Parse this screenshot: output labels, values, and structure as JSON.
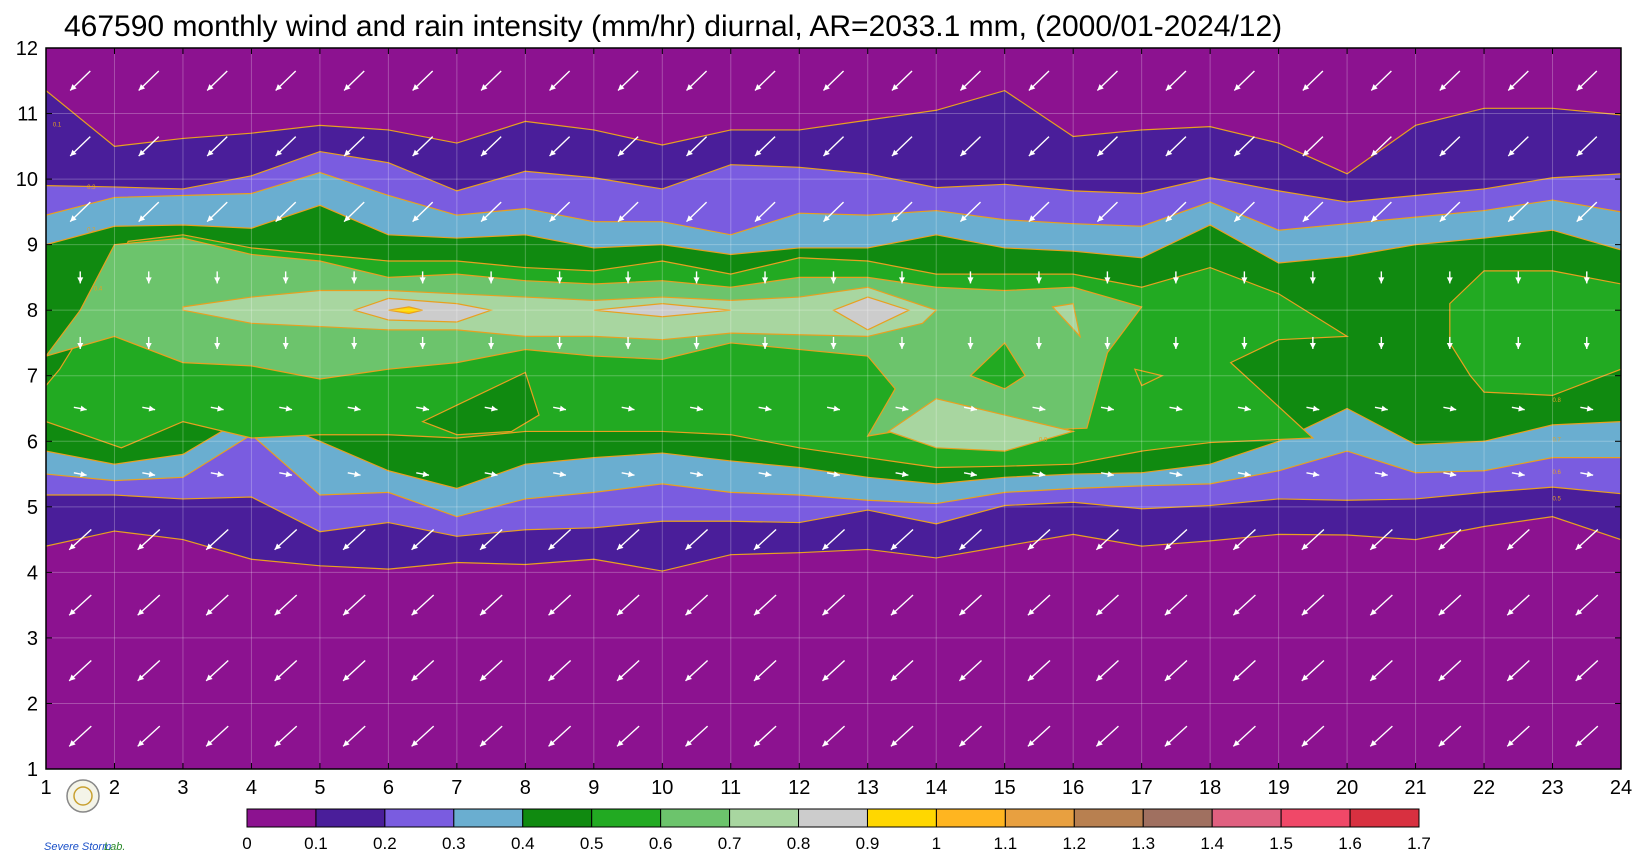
{
  "chart_data": {
    "type": "heatmap",
    "title": "467590 monthly wind and rain intensity (mm/hr) diurnal, AR=2033.1 mm, (2000/01-2024/12)",
    "x_ticks": [
      "1",
      "2",
      "3",
      "4",
      "5",
      "6",
      "7",
      "8",
      "9",
      "10",
      "11",
      "12",
      "13",
      "14",
      "15",
      "16",
      "17",
      "18",
      "19",
      "20",
      "21",
      "22",
      "23",
      "24"
    ],
    "y_ticks": [
      "1",
      "2",
      "3",
      "4",
      "5",
      "6",
      "7",
      "8",
      "9",
      "10",
      "11",
      "12"
    ],
    "xlim": [
      1,
      24
    ],
    "ylim": [
      1,
      12
    ],
    "grid": true,
    "colorbar": {
      "position": "bottom",
      "levels": [
        "0",
        "0.1",
        "0.2",
        "0.3",
        "0.4",
        "0.5",
        "0.6",
        "0.7",
        "0.8",
        "0.9",
        "1",
        "1.1",
        "1.2",
        "1.3",
        "1.4",
        "1.5",
        "1.6",
        "1.7"
      ],
      "colors": [
        "#8c1290",
        "#4a1e9a",
        "#7a5ce0",
        "#6aaed0",
        "#108a10",
        "#22aa22",
        "#6cc46c",
        "#a8d6a0",
        "#cccccc",
        "#ffd700",
        "#ffb520",
        "#e8a040",
        "#b88050",
        "#a07060",
        "#e06080",
        "#f04868",
        "#d83040"
      ]
    },
    "band_colors": [
      "#8c1290",
      "#4a1e9a",
      "#7a5ce0",
      "#6aaed0",
      "#108a10",
      "#22aa22",
      "#6cc46c",
      "#a8d6a0",
      "#cccccc",
      "#ffd700"
    ],
    "contour_line_color": "#e8a020",
    "wind_arrow_color": "#ffffff",
    "contours": [
      {
        "level": 0.1,
        "lower": [
          [
            1,
            4.4
          ],
          [
            2,
            4.63
          ],
          [
            3,
            4.5
          ],
          [
            4,
            4.2
          ],
          [
            5,
            4.1
          ],
          [
            6,
            4.05
          ],
          [
            7,
            4.15
          ],
          [
            8,
            4.12
          ],
          [
            9,
            4.2
          ],
          [
            10,
            4.02
          ],
          [
            11,
            4.27
          ],
          [
            12,
            4.3
          ],
          [
            13,
            4.35
          ],
          [
            14,
            4.22
          ],
          [
            15,
            4.4
          ],
          [
            16,
            4.58
          ],
          [
            17,
            4.4
          ],
          [
            18,
            4.48
          ],
          [
            19,
            4.58
          ],
          [
            20,
            4.57
          ],
          [
            21,
            4.5
          ],
          [
            22,
            4.7
          ],
          [
            23,
            4.85
          ],
          [
            24,
            4.5
          ]
        ],
        "upper": [
          [
            1,
            11.35
          ],
          [
            2,
            10.5
          ],
          [
            3,
            10.62
          ],
          [
            4,
            10.7
          ],
          [
            5,
            10.82
          ],
          [
            6,
            10.75
          ],
          [
            7,
            10.55
          ],
          [
            8,
            10.88
          ],
          [
            9,
            10.75
          ],
          [
            10,
            10.52
          ],
          [
            11,
            10.75
          ],
          [
            12,
            10.75
          ],
          [
            13,
            10.9
          ],
          [
            14,
            11.05
          ],
          [
            15,
            11.35
          ],
          [
            16,
            10.65
          ],
          [
            17,
            10.75
          ],
          [
            18,
            10.8
          ],
          [
            19,
            10.55
          ],
          [
            20,
            10.08
          ],
          [
            21,
            10.82
          ],
          [
            22,
            11.08
          ],
          [
            23,
            11.08
          ],
          [
            24,
            10.98
          ]
        ]
      },
      {
        "level": 0.2,
        "lower": [
          [
            1,
            5.18
          ],
          [
            2,
            5.18
          ],
          [
            3,
            5.12
          ],
          [
            4,
            5.15
          ],
          [
            5,
            4.62
          ],
          [
            6,
            4.76
          ],
          [
            7,
            4.55
          ],
          [
            8,
            4.65
          ],
          [
            9,
            4.68
          ],
          [
            10,
            4.78
          ],
          [
            11,
            4.78
          ],
          [
            12,
            4.76
          ],
          [
            13,
            4.95
          ],
          [
            14,
            4.74
          ],
          [
            15,
            5.02
          ],
          [
            16,
            5.07
          ],
          [
            17,
            4.97
          ],
          [
            18,
            5.02
          ],
          [
            19,
            5.12
          ],
          [
            20,
            5.1
          ],
          [
            21,
            5.12
          ],
          [
            22,
            5.22
          ],
          [
            23,
            5.3
          ],
          [
            24,
            5.2
          ]
        ],
        "upper": [
          [
            1,
            9.9
          ],
          [
            2,
            9.88
          ],
          [
            3,
            9.85
          ],
          [
            4,
            10.05
          ],
          [
            5,
            10.42
          ],
          [
            6,
            10.25
          ],
          [
            7,
            9.82
          ],
          [
            8,
            10.12
          ],
          [
            9,
            10.02
          ],
          [
            10,
            9.85
          ],
          [
            11,
            10.22
          ],
          [
            12,
            10.18
          ],
          [
            13,
            10.08
          ],
          [
            14,
            9.87
          ],
          [
            15,
            9.92
          ],
          [
            16,
            9.82
          ],
          [
            17,
            9.78
          ],
          [
            18,
            10.02
          ],
          [
            19,
            9.82
          ],
          [
            20,
            9.65
          ],
          [
            21,
            9.75
          ],
          [
            22,
            9.85
          ],
          [
            23,
            10.02
          ],
          [
            24,
            10.08
          ]
        ]
      },
      {
        "level": 0.3,
        "lower": [
          [
            1,
            5.5
          ],
          [
            2,
            5.4
          ],
          [
            3,
            5.45
          ],
          [
            4,
            6.1
          ],
          [
            5,
            5.18
          ],
          [
            6,
            5.22
          ],
          [
            7,
            4.85
          ],
          [
            8,
            5.12
          ],
          [
            9,
            5.22
          ],
          [
            10,
            5.35
          ],
          [
            11,
            5.22
          ],
          [
            12,
            5.18
          ],
          [
            13,
            5.1
          ],
          [
            14,
            5.05
          ],
          [
            15,
            5.22
          ],
          [
            16,
            5.28
          ],
          [
            17,
            5.32
          ],
          [
            18,
            5.35
          ],
          [
            19,
            5.55
          ],
          [
            20,
            5.85
          ],
          [
            21,
            5.52
          ],
          [
            22,
            5.55
          ],
          [
            23,
            5.75
          ],
          [
            24,
            5.75
          ]
        ],
        "upper": [
          [
            1,
            9.45
          ],
          [
            2,
            9.72
          ],
          [
            3,
            9.75
          ],
          [
            4,
            9.78
          ],
          [
            5,
            10.1
          ],
          [
            6,
            9.75
          ],
          [
            7,
            9.45
          ],
          [
            8,
            9.55
          ],
          [
            9,
            9.35
          ],
          [
            10,
            9.35
          ],
          [
            11,
            9.15
          ],
          [
            12,
            9.48
          ],
          [
            13,
            9.45
          ],
          [
            14,
            9.52
          ],
          [
            15,
            9.38
          ],
          [
            16,
            9.32
          ],
          [
            17,
            9.28
          ],
          [
            18,
            9.65
          ],
          [
            19,
            9.22
          ],
          [
            20,
            9.32
          ],
          [
            21,
            9.42
          ],
          [
            22,
            9.52
          ],
          [
            23,
            9.68
          ],
          [
            24,
            9.5
          ]
        ]
      },
      {
        "level": 0.4,
        "lower": [
          [
            1,
            5.85
          ],
          [
            2,
            5.65
          ],
          [
            3,
            5.8
          ],
          [
            4,
            6.42
          ],
          [
            5,
            6.0
          ],
          [
            6,
            5.55
          ],
          [
            7,
            5.28
          ],
          [
            8,
            5.65
          ],
          [
            9,
            5.75
          ],
          [
            10,
            5.82
          ],
          [
            11,
            5.7
          ],
          [
            12,
            5.6
          ],
          [
            13,
            5.45
          ],
          [
            14,
            5.35
          ],
          [
            15,
            5.45
          ],
          [
            16,
            5.5
          ],
          [
            17,
            5.52
          ],
          [
            18,
            5.65
          ],
          [
            19,
            6.0
          ],
          [
            20,
            6.5
          ],
          [
            21,
            5.95
          ],
          [
            22,
            6.0
          ],
          [
            23,
            6.25
          ],
          [
            24,
            6.3
          ]
        ],
        "upper": [
          [
            1,
            9.0
          ],
          [
            2,
            9.28
          ],
          [
            3,
            9.3
          ],
          [
            4,
            9.25
          ],
          [
            5,
            9.6
          ],
          [
            6,
            9.15
          ],
          [
            7,
            9.1
          ],
          [
            8,
            9.15
          ],
          [
            9,
            8.95
          ],
          [
            10,
            9.0
          ],
          [
            11,
            8.85
          ],
          [
            12,
            8.95
          ],
          [
            13,
            8.95
          ],
          [
            14,
            9.15
          ],
          [
            15,
            8.95
          ],
          [
            16,
            8.9
          ],
          [
            17,
            8.8
          ],
          [
            18,
            9.3
          ],
          [
            19,
            8.72
          ],
          [
            20,
            8.82
          ],
          [
            21,
            9.0
          ],
          [
            22,
            9.1
          ],
          [
            23,
            9.22
          ],
          [
            24,
            8.92
          ]
        ]
      }
    ],
    "contour_labels": [
      "0.1",
      "0.2",
      "0.3",
      "0.4",
      "0.5",
      "0.6",
      "0.7",
      "0.8",
      "0.9"
    ]
  },
  "logo": {
    "text_main": "Severe Storm",
    "text_suffix": "Lab."
  }
}
